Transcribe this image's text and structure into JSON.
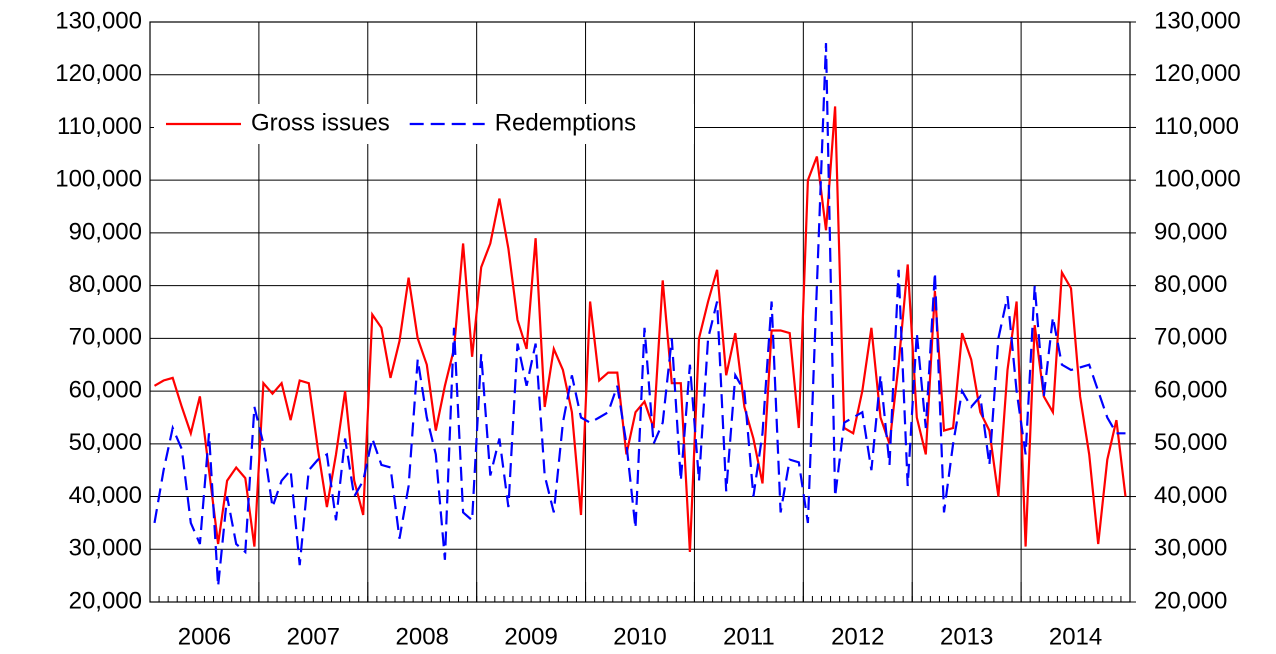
{
  "chart_data": {
    "type": "line",
    "categories": [
      "2006",
      null,
      null,
      null,
      null,
      null,
      null,
      null,
      null,
      null,
      null,
      null,
      "2007",
      null,
      null,
      null,
      null,
      null,
      null,
      null,
      null,
      null,
      null,
      null,
      "2008",
      null,
      null,
      null,
      null,
      null,
      null,
      null,
      null,
      null,
      null,
      null,
      "2009",
      null,
      null,
      null,
      null,
      null,
      null,
      null,
      null,
      null,
      null,
      null,
      "2010",
      null,
      null,
      null,
      null,
      null,
      null,
      null,
      null,
      null,
      null,
      null,
      "2011",
      null,
      null,
      null,
      null,
      null,
      null,
      null,
      null,
      null,
      null,
      null,
      "2012",
      null,
      null,
      null,
      null,
      null,
      null,
      null,
      null,
      null,
      null,
      null,
      "2013",
      null,
      null,
      null,
      null,
      null,
      null,
      null,
      null,
      null,
      null,
      null,
      "2014",
      null,
      null,
      null,
      null,
      null,
      null,
      null,
      null,
      null,
      null,
      null
    ],
    "series": [
      {
        "name": "Gross issues",
        "color": "#ff0000",
        "dash": false,
        "values": [
          61000,
          62000,
          62500,
          57000,
          52000,
          59000,
          45000,
          31000,
          43000,
          45500,
          43500,
          30500,
          61500,
          59500,
          61500,
          54500,
          62000,
          61500,
          49000,
          38000,
          48000,
          60000,
          43000,
          36500,
          74500,
          72000,
          62500,
          69500,
          81500,
          70000,
          65000,
          52500,
          61000,
          68000,
          88000,
          66500,
          83500,
          88000,
          96500,
          87000,
          73500,
          68000,
          89000,
          57000,
          68000,
          64000,
          56000,
          36500,
          77000,
          62000,
          63500,
          63500,
          48000,
          56000,
          58000,
          53000,
          81000,
          61500,
          61500,
          29500,
          70000,
          77000,
          83000,
          63000,
          71000,
          57000,
          51000,
          42500,
          71500,
          71500,
          71000,
          53000,
          100000,
          104500,
          90500,
          114000,
          53000,
          52000,
          60000,
          72000,
          55000,
          50000,
          65000,
          84000,
          55000,
          48000,
          79000,
          52500,
          53000,
          71000,
          66000,
          56000,
          52500,
          40000,
          64000,
          77000,
          30500,
          72500,
          59000,
          56000,
          82500,
          79500,
          59000,
          48000,
          31000,
          47000,
          54500,
          40000
        ]
      },
      {
        "name": "Redemptions",
        "color": "#0000ff",
        "dash": true,
        "values": [
          35000,
          45000,
          53000,
          49000,
          35000,
          31000,
          52000,
          23000,
          40000,
          31000,
          29500,
          57000,
          50000,
          38000,
          43000,
          45000,
          27000,
          45000,
          47000,
          48000,
          35500,
          51000,
          40000,
          43000,
          51000,
          46000,
          45500,
          32000,
          42000,
          66000,
          55000,
          48000,
          28000,
          72000,
          37000,
          35500,
          67000,
          44000,
          51000,
          38000,
          69000,
          61000,
          69000,
          44000,
          37000,
          54000,
          63000,
          55000,
          54000,
          55000,
          56000,
          61000,
          50000,
          34000,
          72000,
          50000,
          54000,
          70000,
          43000,
          65000,
          43000,
          70000,
          77000,
          41000,
          63000,
          60000,
          40000,
          52000,
          77000,
          37000,
          47000,
          46500,
          35000,
          80000,
          126000,
          40000,
          54000,
          55000,
          56000,
          45000,
          63000,
          46000,
          83000,
          42000,
          71000,
          53000,
          82500,
          37000,
          50000,
          60000,
          57000,
          59000,
          46000,
          70000,
          78000,
          60000,
          48000,
          80000,
          59000,
          74000,
          65000,
          64000,
          64500,
          65000,
          60000,
          55000,
          52000,
          52000
        ]
      }
    ],
    "ylim": [
      20000,
      130000
    ],
    "yticks": [
      {
        "value": 20000,
        "label": "20,000"
      },
      {
        "value": 30000,
        "label": "30,000"
      },
      {
        "value": 40000,
        "label": "40,000"
      },
      {
        "value": 50000,
        "label": "50,000"
      },
      {
        "value": 60000,
        "label": "60,000"
      },
      {
        "value": 70000,
        "label": "70,000"
      },
      {
        "value": 80000,
        "label": "80,000"
      },
      {
        "value": 90000,
        "label": "90,000"
      },
      {
        "value": 100000,
        "label": "100,000"
      },
      {
        "value": 110000,
        "label": "110,000"
      },
      {
        "value": 120000,
        "label": "120,000"
      },
      {
        "value": 130000,
        "label": "130,000"
      }
    ],
    "y2lim": [
      20000,
      130000
    ],
    "y2ticks": [
      {
        "value": 20000,
        "label": "20,000"
      },
      {
        "value": 30000,
        "label": "30,000"
      },
      {
        "value": 40000,
        "label": "40,000"
      },
      {
        "value": 50000,
        "label": "50,000"
      },
      {
        "value": 60000,
        "label": "60,000"
      },
      {
        "value": 70000,
        "label": "70,000"
      },
      {
        "value": 80000,
        "label": "80,000"
      },
      {
        "value": 90000,
        "label": "90,000"
      },
      {
        "value": 100000,
        "label": "100,000"
      },
      {
        "value": 110000,
        "label": "110,000"
      },
      {
        "value": 120000,
        "label": "120,000"
      },
      {
        "value": 130000,
        "label": "130,000"
      }
    ],
    "grid": true,
    "legend": "top-left"
  }
}
